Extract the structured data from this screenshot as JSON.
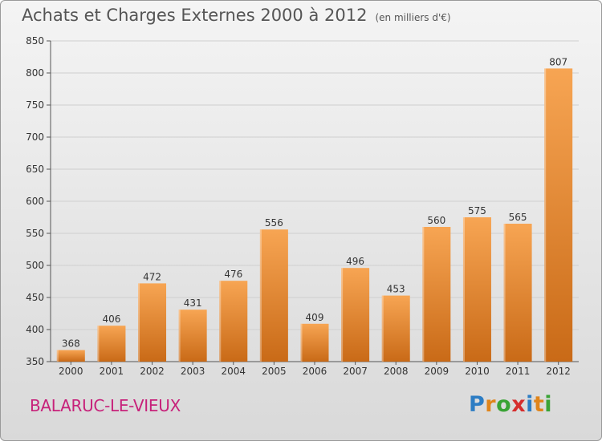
{
  "header": {
    "title": "Achats et Charges Externes 2000 à 2012",
    "unit": "(en milliers d'€)"
  },
  "footer": {
    "location": "BALARUC-LE-VIEUX",
    "brand_letters": [
      "P",
      "r",
      "o",
      "x",
      "i",
      "t",
      "i"
    ]
  },
  "colors": {
    "bar_light": "#f7a553",
    "bar_dark": "#c96a17",
    "location": "#c7217a",
    "brand": [
      "#2d7dc4",
      "#e0851b",
      "#3aa335",
      "#d62d2d",
      "#2d7dc4",
      "#e0851b",
      "#3aa335"
    ]
  },
  "chart_data": {
    "type": "bar",
    "title": "Achats et Charges Externes 2000 à 2012",
    "subtitle": "(en milliers d'€)",
    "categories": [
      "2000",
      "2001",
      "2002",
      "2003",
      "2004",
      "2005",
      "2006",
      "2007",
      "2008",
      "2009",
      "2010",
      "2011",
      "2012"
    ],
    "values": [
      368,
      406,
      472,
      431,
      476,
      556,
      409,
      496,
      453,
      560,
      575,
      565,
      807
    ],
    "ylim": [
      350,
      850
    ],
    "yticks": [
      350,
      400,
      450,
      500,
      550,
      600,
      650,
      700,
      750,
      800,
      850
    ],
    "grid": true,
    "legend": "none"
  }
}
